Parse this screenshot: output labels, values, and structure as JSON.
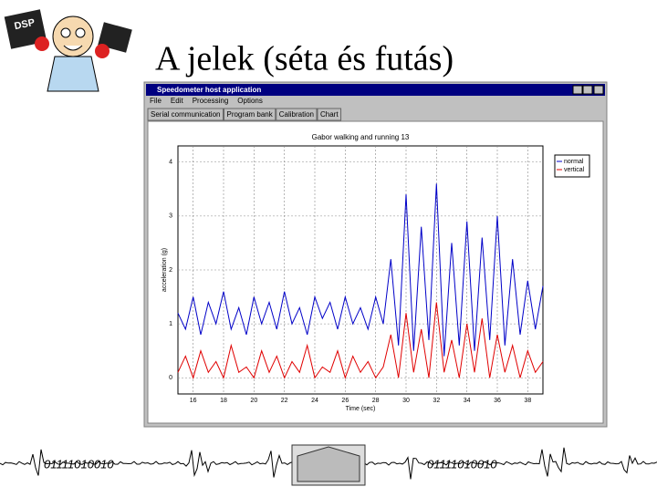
{
  "slide": {
    "title": "A jelek (séta és futás)",
    "cartoon_label": "DSP"
  },
  "window": {
    "title": "Speedometer host application",
    "menu": [
      "File",
      "Edit",
      "Processing",
      "Options"
    ],
    "tabs": [
      "Serial communication",
      "Program bank",
      "Calibration",
      "Chart"
    ]
  },
  "footer": {
    "binary_left": "01111010010",
    "binary_right": "01111010010"
  },
  "chart_data": {
    "type": "line",
    "title": "Gabor walking and running 13",
    "x_label": "Time (sec)",
    "y_label": "acceleration (g)",
    "x": [
      15,
      15.5,
      16,
      16.5,
      17,
      17.5,
      18,
      18.5,
      19,
      19.5,
      20,
      20.5,
      21,
      21.5,
      22,
      22.5,
      23,
      23.5,
      24,
      24.5,
      25,
      25.5,
      26,
      26.5,
      27,
      27.5,
      28,
      28.5,
      29,
      29.5,
      30,
      30.5,
      31,
      31.5,
      32,
      32.5,
      33,
      33.5,
      34,
      34.5,
      35,
      35.5,
      36,
      36.5,
      37,
      37.5,
      38,
      38.5,
      39
    ],
    "series": [
      {
        "name": "normal",
        "color": "#0000c8",
        "values": [
          1.2,
          0.9,
          1.5,
          0.8,
          1.4,
          1.0,
          1.6,
          0.9,
          1.3,
          0.8,
          1.5,
          1.0,
          1.4,
          0.9,
          1.6,
          1.0,
          1.3,
          0.8,
          1.5,
          1.1,
          1.4,
          0.9,
          1.5,
          1.0,
          1.3,
          0.9,
          1.5,
          1.0,
          2.2,
          0.6,
          3.4,
          0.5,
          2.8,
          0.7,
          3.6,
          0.4,
          2.5,
          0.6,
          2.9,
          0.5,
          2.6,
          0.7,
          3.0,
          0.6,
          2.2,
          0.8,
          1.8,
          0.9,
          1.7
        ]
      },
      {
        "name": "vertical",
        "color": "#e00000",
        "values": [
          0.1,
          0.4,
          0.0,
          0.5,
          0.1,
          0.3,
          0.0,
          0.6,
          0.1,
          0.2,
          0.0,
          0.5,
          0.1,
          0.4,
          0.0,
          0.3,
          0.1,
          0.6,
          0.0,
          0.2,
          0.1,
          0.5,
          0.0,
          0.4,
          0.1,
          0.3,
          0.0,
          0.2,
          0.8,
          0.0,
          1.2,
          0.1,
          0.9,
          0.0,
          1.4,
          0.1,
          0.7,
          0.0,
          1.0,
          0.1,
          1.1,
          0.0,
          0.8,
          0.1,
          0.6,
          0.0,
          0.5,
          0.1,
          0.3
        ]
      }
    ],
    "xlim": [
      15,
      39
    ],
    "ylim": [
      -0.3,
      4.3
    ],
    "xticks": [
      16,
      18,
      20,
      22,
      24,
      26,
      28,
      30,
      32,
      34,
      36,
      38
    ],
    "yticks": [
      0,
      1,
      2,
      3,
      4
    ],
    "grid": true,
    "legend": "upper right"
  }
}
